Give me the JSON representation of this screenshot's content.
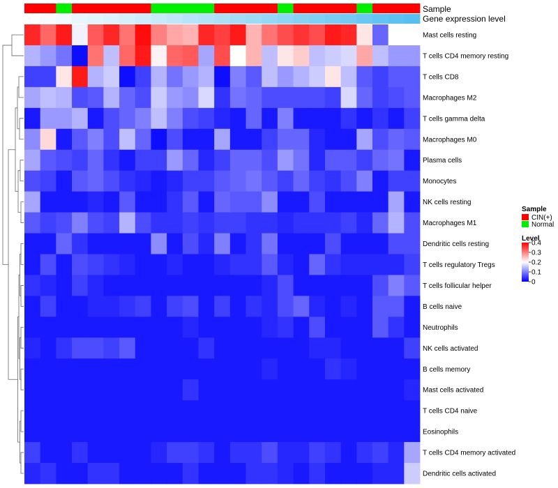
{
  "chart_data": {
    "type": "heatmap",
    "annotation_labels": {
      "sample": "Sample",
      "gene_expression": "Gene expression level"
    },
    "sample_groups": [
      "CIN(+)",
      "CIN(+)",
      "Normal",
      "CIN(+)",
      "CIN(+)",
      "CIN(+)",
      "CIN(+)",
      "CIN(+)",
      "Normal",
      "Normal",
      "Normal",
      "Normal",
      "CIN(+)",
      "CIN(+)",
      "CIN(+)",
      "CIN(+)",
      "Normal",
      "CIN(+)",
      "CIN(+)",
      "CIN(+)",
      "CIN(+)",
      "Normal",
      "CIN(+)",
      "CIN(+)",
      "CIN(+)"
    ],
    "gene_expression_level": [
      0.0,
      0.04,
      0.08,
      0.13,
      0.17,
      0.21,
      0.25,
      0.29,
      0.33,
      0.38,
      0.42,
      0.46,
      0.5,
      0.54,
      0.58,
      0.63,
      0.67,
      0.71,
      0.75,
      0.79,
      0.83,
      0.88,
      0.92,
      0.96,
      1.0
    ],
    "rows": [
      "Mast cells resting",
      "T cells CD4 memory resting",
      "T cells CD8",
      "Macrophages M2",
      "T cells gamma delta",
      "Macrophages M0",
      "Plasma cells",
      "Monocytes",
      "NK cells resting",
      "Macrophages M1",
      "Dendritic cells resting",
      "T cells regulatory  Tregs",
      "T cells follicular helper",
      "B cells naive",
      "Neutrophils",
      "NK cells activated",
      "B cells memory",
      "Mast cells activated",
      "T cells CD4 naive",
      "Eosinophils",
      "T cells CD4 memory activated",
      "Dendritic cells activated"
    ],
    "values": [
      [
        0.37,
        0.32,
        0.38,
        0.19,
        0.33,
        0.37,
        0.31,
        0.39,
        0.3,
        0.27,
        0.26,
        0.37,
        0.35,
        0.38,
        0.26,
        0.31,
        0.34,
        0.36,
        0.34,
        0.38,
        0.37,
        0.22,
        0.08,
        0.2,
        0.2
      ],
      [
        0.14,
        0.12,
        0.09,
        0.01,
        0.31,
        0.15,
        0.32,
        0.38,
        0.21,
        0.32,
        0.33,
        0.13,
        0.34,
        0.2,
        0.26,
        0.15,
        0.22,
        0.24,
        0.15,
        0.16,
        0.17,
        0.27,
        0.15,
        0.12,
        0.12
      ],
      [
        0.05,
        0.05,
        0.22,
        0.38,
        0.14,
        0.16,
        0.01,
        0.05,
        0.14,
        0.09,
        0.12,
        0.14,
        0.01,
        0.1,
        0.07,
        0.15,
        0.12,
        0.14,
        0.16,
        0.22,
        0.15,
        0.07,
        0.05,
        0.07,
        0.07
      ],
      [
        0.13,
        0.15,
        0.14,
        0.06,
        0.07,
        0.14,
        0.08,
        0.06,
        0.16,
        0.12,
        0.11,
        0.17,
        0.04,
        0.09,
        0.08,
        0.06,
        0.06,
        0.06,
        0.06,
        0.05,
        0.17,
        0.08,
        0.05,
        0.06,
        0.07
      ],
      [
        0.02,
        0.12,
        0.12,
        0.14,
        0.02,
        0.06,
        0.08,
        0.1,
        0.15,
        0.1,
        0.06,
        0.05,
        0.03,
        0.02,
        0.08,
        0.02,
        0.1,
        0.02,
        0.02,
        0.02,
        0.04,
        0.02,
        0.04,
        0.02,
        0.05
      ],
      [
        0.11,
        0.23,
        0.02,
        0.07,
        0.1,
        0.06,
        0.15,
        0.08,
        0.01,
        0.06,
        0.02,
        0.02,
        0.13,
        0.02,
        0.02,
        0.05,
        0.08,
        0.08,
        0.03,
        0.02,
        0.02,
        0.13,
        0.06,
        0.08,
        0.07
      ],
      [
        0.13,
        0.07,
        0.06,
        0.05,
        0.08,
        0.04,
        0.02,
        0.05,
        0.05,
        0.12,
        0.08,
        0.03,
        0.05,
        0.08,
        0.08,
        0.06,
        0.12,
        0.09,
        0.03,
        0.07,
        0.07,
        0.05,
        0.08,
        0.09,
        0.02
      ],
      [
        0.06,
        0.05,
        0.02,
        0.07,
        0.08,
        0.06,
        0.04,
        0.03,
        0.02,
        0.03,
        0.05,
        0.05,
        0.07,
        0.08,
        0.09,
        0.07,
        0.05,
        0.08,
        0.05,
        0.04,
        0.06,
        0.1,
        0.02,
        0.05,
        0.05
      ],
      [
        0.13,
        0.02,
        0.02,
        0.02,
        0.03,
        0.02,
        0.07,
        0.02,
        0.02,
        0.04,
        0.07,
        0.02,
        0.08,
        0.07,
        0.07,
        0.11,
        0.02,
        0.02,
        0.06,
        0.02,
        0.02,
        0.02,
        0.02,
        0.13,
        0.02
      ],
      [
        0.07,
        0.05,
        0.06,
        0.1,
        0.06,
        0.05,
        0.14,
        0.06,
        0.04,
        0.04,
        0.05,
        0.04,
        0.05,
        0.05,
        0.04,
        0.04,
        0.03,
        0.04,
        0.04,
        0.04,
        0.05,
        0.03,
        0.08,
        0.14,
        0.06
      ],
      [
        0.02,
        0.02,
        0.08,
        0.04,
        0.02,
        0.02,
        0.02,
        0.02,
        0.11,
        0.02,
        0.06,
        0.03,
        0.1,
        0.02,
        0.04,
        0.09,
        0.02,
        0.02,
        0.02,
        0.06,
        0.02,
        0.02,
        0.02,
        0.06,
        0.06
      ],
      [
        0.02,
        0.06,
        0.02,
        0.06,
        0.05,
        0.04,
        0.03,
        0.02,
        0.02,
        0.03,
        0.02,
        0.02,
        0.03,
        0.04,
        0.04,
        0.07,
        0.03,
        0.02,
        0.08,
        0.04,
        0.03,
        0.03,
        0.03,
        0.03,
        0.05
      ],
      [
        0.04,
        0.03,
        0.02,
        0.05,
        0.03,
        0.02,
        0.02,
        0.02,
        0.02,
        0.02,
        0.02,
        0.02,
        0.02,
        0.02,
        0.02,
        0.03,
        0.06,
        0.02,
        0.02,
        0.02,
        0.02,
        0.02,
        0.06,
        0.1,
        0.07
      ],
      [
        0.02,
        0.05,
        0.02,
        0.02,
        0.03,
        0.03,
        0.04,
        0.05,
        0.02,
        0.05,
        0.06,
        0.02,
        0.05,
        0.02,
        0.04,
        0.03,
        0.06,
        0.08,
        0.03,
        0.02,
        0.03,
        0.02,
        0.07,
        0.07,
        0.02
      ],
      [
        0.02,
        0.02,
        0.02,
        0.02,
        0.02,
        0.02,
        0.02,
        0.02,
        0.02,
        0.02,
        0.03,
        0.02,
        0.02,
        0.02,
        0.02,
        0.03,
        0.04,
        0.02,
        0.06,
        0.02,
        0.02,
        0.02,
        0.07,
        0.04,
        0.02
      ],
      [
        0.03,
        0.02,
        0.04,
        0.06,
        0.06,
        0.05,
        0.07,
        0.02,
        0.02,
        0.02,
        0.02,
        0.04,
        0.02,
        0.02,
        0.02,
        0.02,
        0.02,
        0.02,
        0.03,
        0.03,
        0.02,
        0.02,
        0.02,
        0.02,
        0.05
      ],
      [
        0.02,
        0.02,
        0.02,
        0.02,
        0.02,
        0.02,
        0.02,
        0.02,
        0.02,
        0.02,
        0.02,
        0.02,
        0.02,
        0.02,
        0.02,
        0.03,
        0.02,
        0.02,
        0.02,
        0.04,
        0.03,
        0.02,
        0.02,
        0.02,
        0.02
      ],
      [
        0.02,
        0.02,
        0.02,
        0.02,
        0.02,
        0.02,
        0.02,
        0.02,
        0.02,
        0.02,
        0.04,
        0.02,
        0.02,
        0.02,
        0.02,
        0.02,
        0.02,
        0.02,
        0.02,
        0.02,
        0.02,
        0.02,
        0.02,
        0.02,
        0.03
      ],
      [
        0.02,
        0.02,
        0.02,
        0.02,
        0.02,
        0.02,
        0.02,
        0.02,
        0.02,
        0.02,
        0.02,
        0.02,
        0.02,
        0.02,
        0.02,
        0.02,
        0.02,
        0.02,
        0.02,
        0.02,
        0.02,
        0.02,
        0.02,
        0.02,
        0.02
      ],
      [
        0.02,
        0.02,
        0.02,
        0.02,
        0.02,
        0.02,
        0.02,
        0.02,
        0.02,
        0.02,
        0.02,
        0.02,
        0.02,
        0.02,
        0.02,
        0.02,
        0.02,
        0.02,
        0.02,
        0.02,
        0.02,
        0.02,
        0.02,
        0.02,
        0.02
      ],
      [
        0.05,
        0.02,
        0.02,
        0.04,
        0.02,
        0.02,
        0.02,
        0.02,
        0.03,
        0.05,
        0.05,
        0.04,
        0.02,
        0.04,
        0.04,
        0.06,
        0.03,
        0.03,
        0.05,
        0.04,
        0.02,
        0.04,
        0.05,
        0.03,
        0.13
      ],
      [
        0.03,
        0.04,
        0.02,
        0.02,
        0.04,
        0.04,
        0.02,
        0.02,
        0.02,
        0.02,
        0.04,
        0.02,
        0.02,
        0.02,
        0.04,
        0.04,
        0.03,
        0.02,
        0.04,
        0.02,
        0.02,
        0.02,
        0.03,
        0.03,
        0.16
      ]
    ],
    "color_scale": {
      "min": 0,
      "max": 0.4,
      "low": "#0000FF",
      "mid": "#FFFFFF",
      "high": "#FF0000"
    },
    "legend": {
      "sample_title": "Sample",
      "sample_entries": [
        {
          "label": "CIN(+)",
          "color": "#FF0000"
        },
        {
          "label": "Normal",
          "color": "#00EE00"
        }
      ],
      "level_title": "Level",
      "level_ticks": [
        {
          "value": 0.4,
          "label": "0.4"
        },
        {
          "value": 0.3,
          "label": "0.3"
        },
        {
          "value": 0.2,
          "label": "0.2"
        },
        {
          "value": 0.1,
          "label": "0.1"
        },
        {
          "value": 0,
          "label": "0"
        }
      ]
    },
    "colors": {
      "gene_expression_low": "#FFFFFF",
      "gene_expression_high": "#56BFF0"
    }
  }
}
